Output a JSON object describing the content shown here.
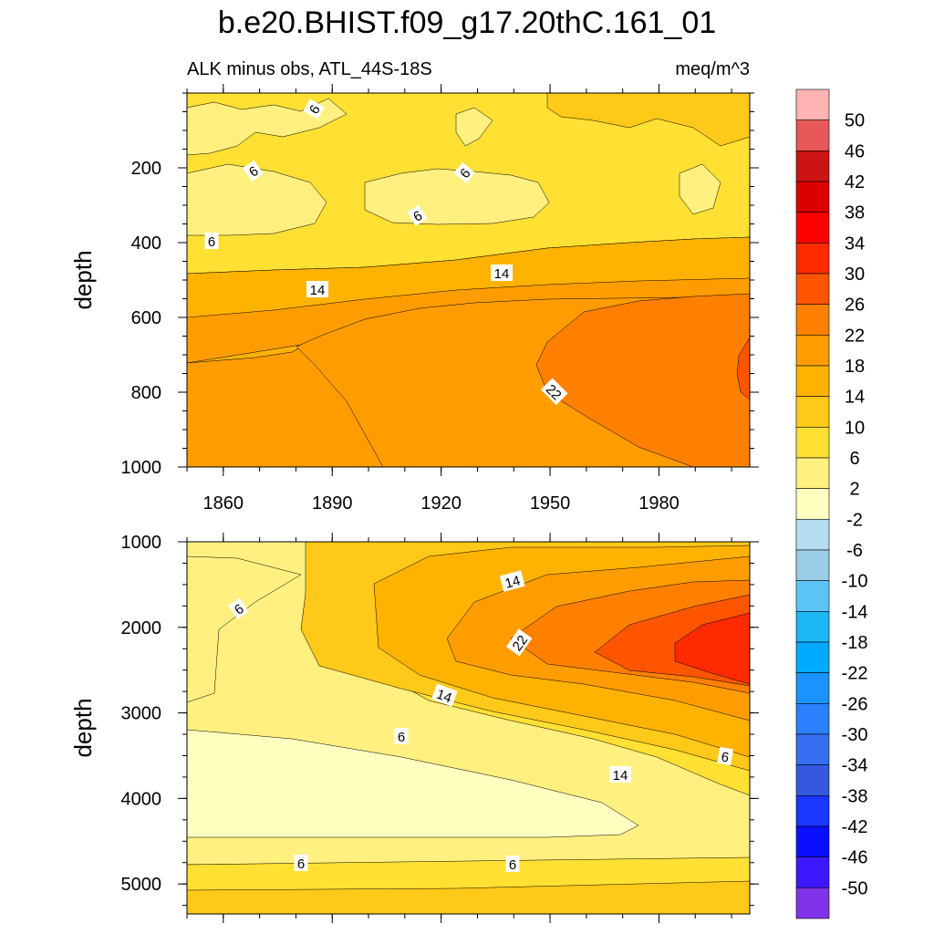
{
  "chart_data": {
    "type": "contour",
    "title": "b.e20.BHIST.f09_g17.20thC.161_01",
    "subtitle_left": "ALK minus obs, ATL_44S-18S",
    "subtitle_right": "meq/m^3",
    "xlabel": "",
    "ylabel": "depth",
    "x_range": [
      1850,
      2005
    ],
    "x_ticks": [
      "1860",
      "1890",
      "1920",
      "1950",
      "1980"
    ],
    "panels": [
      {
        "name": "upper",
        "ylabel": "depth",
        "y_range": [
          0,
          1000
        ],
        "y_ticks": [
          "200",
          "400",
          "600",
          "800",
          "1000"
        ],
        "contour_labels": [
          "6",
          "6",
          "6",
          "6",
          "6",
          "14",
          "14",
          "22"
        ]
      },
      {
        "name": "lower",
        "ylabel": "depth",
        "y_range": [
          1000,
          5350
        ],
        "y_ticks": [
          "1000",
          "2000",
          "3000",
          "4000",
          "5000"
        ],
        "contour_labels": [
          "6",
          "14",
          "22",
          "14",
          "6",
          "6",
          "14",
          "6",
          "6"
        ]
      }
    ],
    "colorbar": {
      "levels": [
        "50",
        "46",
        "42",
        "38",
        "34",
        "30",
        "26",
        "22",
        "18",
        "14",
        "10",
        "6",
        "2",
        "-2",
        "-6",
        "-10",
        "-14",
        "-18",
        "-22",
        "-26",
        "-30",
        "-34",
        "-38",
        "-42",
        "-46",
        "-50"
      ],
      "colors": [
        "#ffb3b3",
        "#e85858",
        "#cc1414",
        "#dd0000",
        "#ff0000",
        "#ff2a00",
        "#ff5500",
        "#ff8000",
        "#ff9d00",
        "#ffb300",
        "#ffc91a",
        "#ffe033",
        "#fff080",
        "#ffffc0",
        "#b7ddf2",
        "#99cde8",
        "#5bc4f5",
        "#1ab8f5",
        "#00aaff",
        "#1a93ff",
        "#2a80ff",
        "#356ef0",
        "#3558e0",
        "#1a36ff",
        "#0a10ff",
        "#3d18ff",
        "#8033e8"
      ]
    }
  }
}
